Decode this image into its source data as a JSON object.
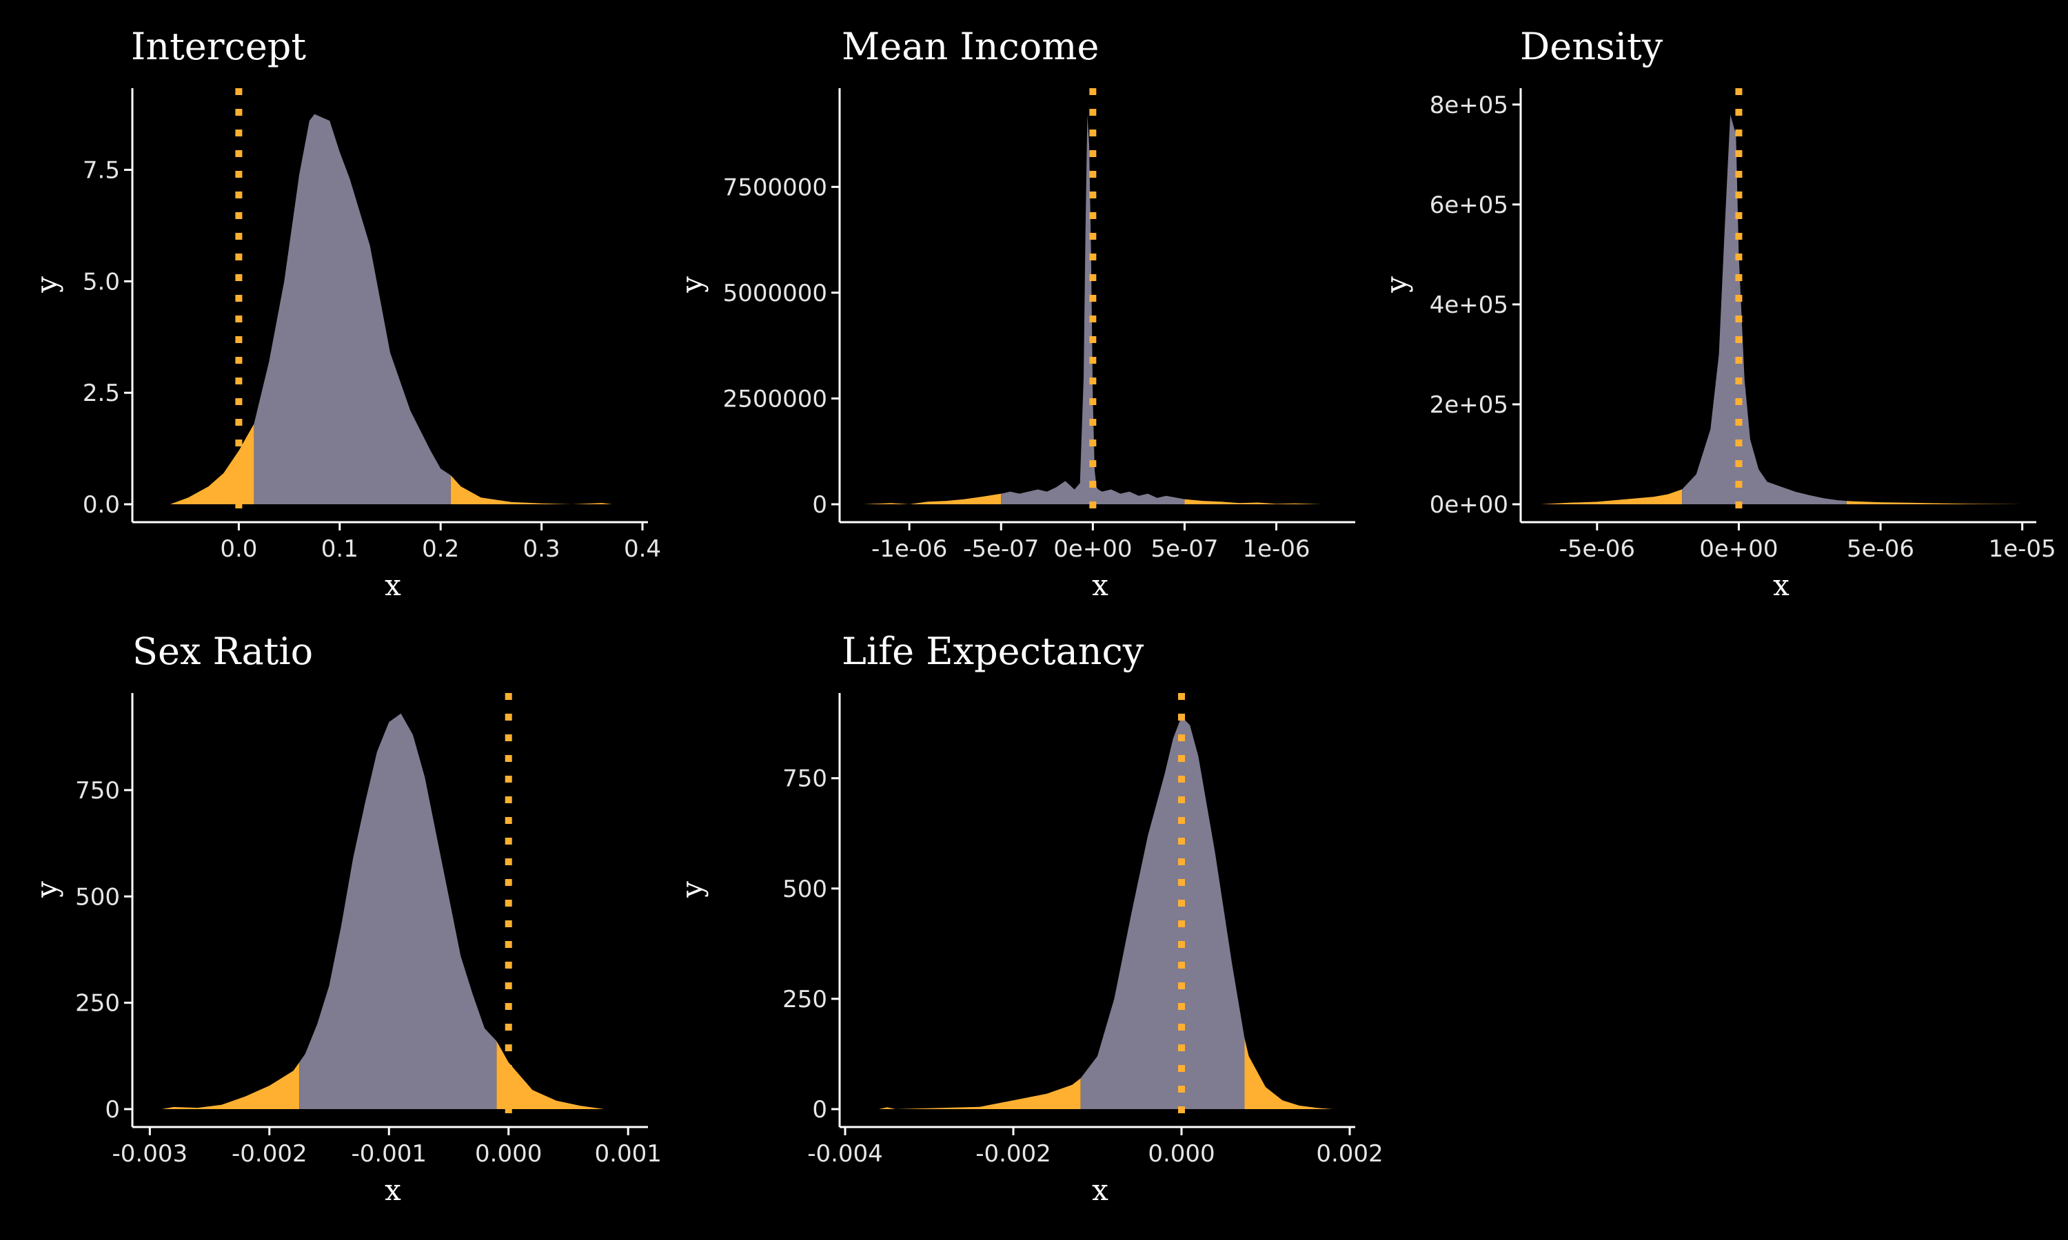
{
  "colors": {
    "background": "#000000",
    "body_fill": "#7f7b91",
    "tail_fill": "#ffb030",
    "reference_line": "#ffb030",
    "axis": "#ffffff",
    "text": "#ffffff"
  },
  "chart_data": [
    {
      "type": "area",
      "title": "Intercept",
      "xlabel": "x",
      "ylabel": "y",
      "xlim": [
        -0.1,
        0.4
      ],
      "ylim": [
        0,
        9.3
      ],
      "xticks": [
        0.0,
        0.1,
        0.2,
        0.3,
        0.4
      ],
      "xtick_labels": [
        "0.0",
        "0.1",
        "0.2",
        "0.3",
        "0.4"
      ],
      "yticks": [
        0.0,
        2.5,
        5.0,
        7.5
      ],
      "ytick_labels": [
        "0.0",
        "2.5",
        "5.0",
        "7.5"
      ],
      "reference_x": 0,
      "interval": [
        0.015,
        0.21
      ],
      "density": {
        "x": [
          -0.068,
          -0.05,
          -0.03,
          -0.015,
          0.0,
          0.01,
          0.015,
          0.03,
          0.045,
          0.06,
          0.07,
          0.075,
          0.09,
          0.1,
          0.11,
          0.13,
          0.15,
          0.17,
          0.19,
          0.2,
          0.21,
          0.22,
          0.24,
          0.27,
          0.3,
          0.33,
          0.36,
          0.37
        ],
        "y": [
          0.0,
          0.15,
          0.4,
          0.7,
          1.2,
          1.6,
          1.8,
          3.2,
          5.0,
          7.4,
          8.6,
          8.75,
          8.6,
          7.9,
          7.3,
          5.8,
          3.4,
          2.1,
          1.2,
          0.8,
          0.65,
          0.4,
          0.15,
          0.05,
          0.02,
          0.0,
          0.03,
          0.0
        ]
      }
    },
    {
      "type": "area",
      "title": "Mean Income",
      "xlabel": "x",
      "ylabel": "y",
      "xlim": [
        -1.35e-06,
        1.4e-06
      ],
      "ylim": [
        0,
        9800000
      ],
      "xticks": [
        -1e-06,
        -5e-07,
        0,
        5e-07,
        1e-06
      ],
      "xtick_labels": [
        "-1e-06",
        "-5e-07",
        "0e+00",
        "5e-07",
        "1e-06"
      ],
      "yticks": [
        0,
        2500000,
        5000000,
        7500000
      ],
      "ytick_labels": [
        "0",
        "2500000",
        "5000000",
        "7500000"
      ],
      "reference_x": 0,
      "interval": [
        -5e-07,
        5e-07
      ],
      "density": {
        "x": [
          -1.25e-06,
          -1.1e-06,
          -1e-06,
          -9e-07,
          -8e-07,
          -7e-07,
          -6e-07,
          -5e-07,
          -4.5e-07,
          -4e-07,
          -3e-07,
          -2.5e-07,
          -2e-07,
          -1.5e-07,
          -1e-07,
          -7e-08,
          -5e-08,
          -4e-08,
          -3e-08,
          -2e-08,
          -1e-08,
          0,
          1e-08,
          2e-08,
          3e-08,
          5e-08,
          1e-07,
          1.5e-07,
          2e-07,
          2.5e-07,
          3e-07,
          3.5e-07,
          4e-07,
          5e-07,
          6e-07,
          7e-07,
          8e-07,
          9e-07,
          1e-06,
          1.1e-06,
          1.25e-06
        ],
        "y": [
          0,
          30000,
          0,
          60000,
          80000,
          120000,
          180000,
          250000,
          300000,
          250000,
          350000,
          300000,
          400000,
          550000,
          350000,
          500000,
          3000000,
          6500000,
          9200000,
          8500000,
          6000000,
          2500000,
          800000,
          400000,
          350000,
          300000,
          350000,
          250000,
          300000,
          200000,
          250000,
          150000,
          200000,
          120000,
          80000,
          60000,
          30000,
          40000,
          10000,
          20000,
          0
        ]
      }
    },
    {
      "type": "area",
      "title": "Density",
      "xlabel": "x",
      "ylabel": "y",
      "xlim": [
        -7.5e-06,
        1.03e-05
      ],
      "ylim": [
        0,
        830000
      ],
      "xticks": [
        -5e-06,
        0,
        5e-06,
        1e-05
      ],
      "xtick_labels": [
        "-5e-06",
        "0e+00",
        "5e-06",
        "1e-05"
      ],
      "yticks": [
        0,
        200000,
        400000,
        600000,
        800000
      ],
      "ytick_labels": [
        "0e+00",
        "2e+05",
        "4e+05",
        "6e+05",
        "8e+05"
      ],
      "reference_x": 0,
      "interval": [
        -2e-06,
        3.8e-06
      ],
      "density": {
        "x": [
          -7e-06,
          -6e-06,
          -5e-06,
          -4e-06,
          -3e-06,
          -2.5e-06,
          -2e-06,
          -1.5e-06,
          -1e-06,
          -7e-07,
          -5e-07,
          -3e-07,
          -1e-07,
          0,
          2e-07,
          4e-07,
          7e-07,
          1e-06,
          1.5e-06,
          2e-06,
          2.5e-06,
          3e-06,
          3.5e-06,
          4e-06,
          5e-06,
          6e-06,
          7e-06,
          8e-06,
          9e-06,
          1e-05
        ],
        "y": [
          0,
          3000,
          5000,
          10000,
          15000,
          20000,
          30000,
          60000,
          150000,
          300000,
          550000,
          780000,
          740000,
          500000,
          250000,
          130000,
          70000,
          45000,
          35000,
          25000,
          18000,
          12000,
          8000,
          6000,
          4000,
          3000,
          2000,
          1000,
          500,
          0
        ]
      }
    },
    {
      "type": "area",
      "title": "Sex Ratio",
      "xlabel": "x",
      "ylabel": "y",
      "xlim": [
        -0.0031,
        0.00112
      ],
      "ylim": [
        0,
        975
      ],
      "xticks": [
        -0.003,
        -0.002,
        -0.001,
        0.0,
        0.001
      ],
      "xtick_labels": [
        "-0.003",
        "-0.002",
        "-0.001",
        "0.000",
        "0.001"
      ],
      "yticks": [
        0,
        250,
        500,
        750
      ],
      "ytick_labels": [
        "0",
        "250",
        "500",
        "750"
      ],
      "reference_x": 0,
      "interval": [
        -0.00175,
        -0.0001
      ],
      "density": {
        "x": [
          -0.0029,
          -0.0028,
          -0.0026,
          -0.0024,
          -0.0022,
          -0.002,
          -0.0018,
          -0.0017,
          -0.0016,
          -0.0015,
          -0.0014,
          -0.0013,
          -0.0012,
          -0.0011,
          -0.001,
          -0.0009,
          -0.0008,
          -0.0007,
          -0.0006,
          -0.0005,
          -0.0004,
          -0.0003,
          -0.0002,
          -0.0001,
          0.0,
          0.0002,
          0.0004,
          0.0006,
          0.0008
        ],
        "y": [
          0,
          5,
          3,
          10,
          30,
          55,
          90,
          130,
          200,
          290,
          430,
          590,
          720,
          840,
          910,
          930,
          880,
          780,
          640,
          500,
          360,
          270,
          190,
          160,
          110,
          45,
          20,
          8,
          0
        ]
      }
    },
    {
      "type": "area",
      "title": "Life Expectancy",
      "xlabel": "x",
      "ylabel": "y",
      "xlim": [
        -0.004,
        0.002
      ],
      "ylim": [
        0,
        940
      ],
      "xticks": [
        -0.004,
        -0.002,
        0.0,
        0.002
      ],
      "xtick_labels": [
        "-0.004",
        "-0.002",
        "0.000",
        "0.002"
      ],
      "yticks": [
        0,
        250,
        500,
        750
      ],
      "ytick_labels": [
        "0",
        "250",
        "500",
        "750"
      ],
      "reference_x": 0,
      "interval": [
        -0.0012,
        0.00075
      ],
      "density": {
        "x": [
          -0.0036,
          -0.0035,
          -0.0034,
          -0.0024,
          -0.002,
          -0.0016,
          -0.0013,
          -0.0012,
          -0.001,
          -0.0008,
          -0.0006,
          -0.0004,
          -0.0002,
          -0.0001,
          0.0,
          0.0001,
          0.0002,
          0.0004,
          0.0006,
          0.00075,
          0.0008,
          0.001,
          0.0012,
          0.0014,
          0.0016,
          0.0018
        ],
        "y": [
          0,
          4,
          0,
          5,
          20,
          35,
          55,
          70,
          120,
          250,
          440,
          620,
          760,
          840,
          890,
          870,
          800,
          580,
          330,
          160,
          120,
          50,
          20,
          8,
          3,
          0
        ]
      }
    }
  ]
}
